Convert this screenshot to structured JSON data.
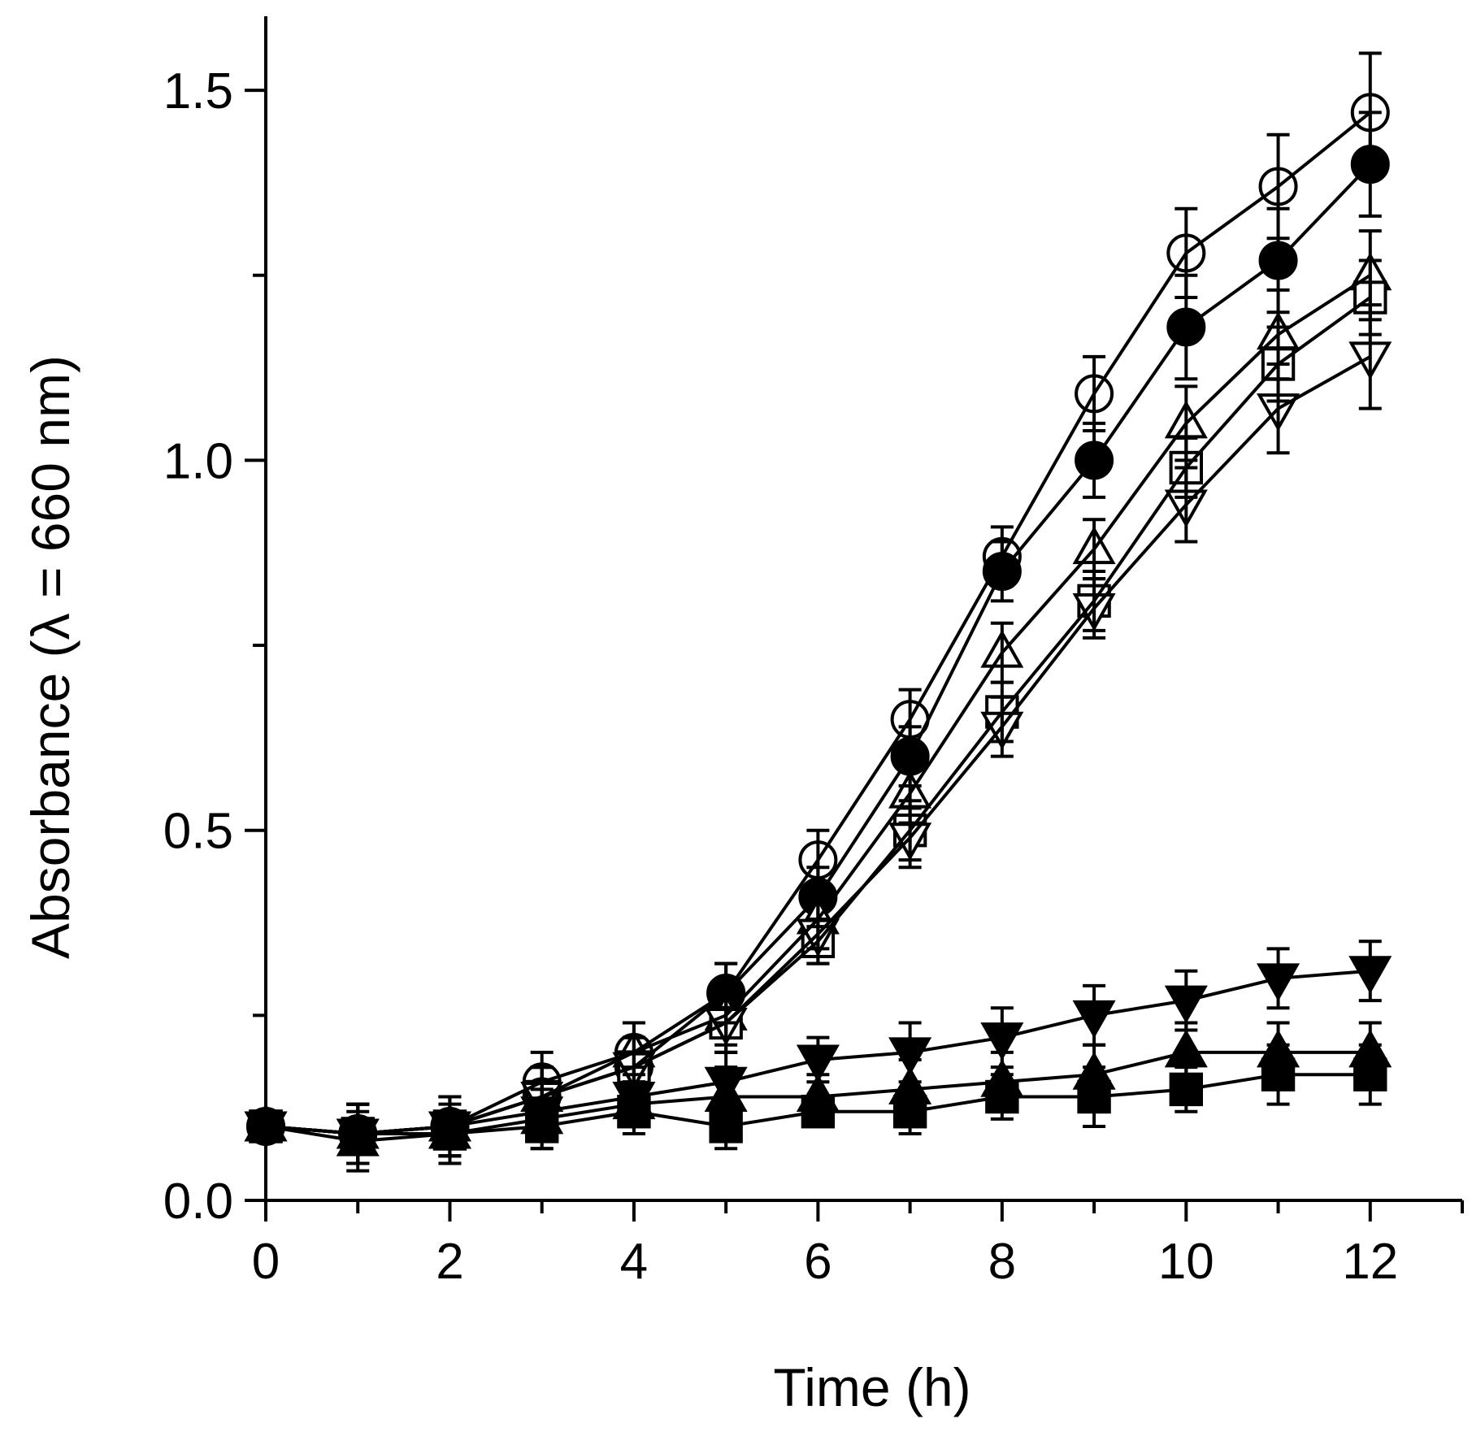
{
  "chart_data": {
    "type": "line",
    "title": "",
    "xlabel": "Time (h)",
    "ylabel": "Absorbance (λ = 660 nm)",
    "xlim": [
      0,
      13
    ],
    "ylim": [
      0,
      1.6
    ],
    "xticks": [
      0,
      2,
      4,
      6,
      8,
      10,
      12
    ],
    "xtick_labels": [
      "0",
      "2",
      "4",
      "6",
      "8",
      "10",
      "12"
    ],
    "yticks": [
      0,
      0.5,
      1.0,
      1.5
    ],
    "ytick_labels": [
      "0.0",
      "0.5",
      "1.0",
      "1.5"
    ],
    "x": [
      0,
      1,
      2,
      3,
      4,
      5,
      6,
      7,
      8,
      9,
      10,
      11,
      12
    ],
    "series": [
      {
        "name": "open circle",
        "marker": "circle",
        "filled": false,
        "values": [
          0.1,
          0.09,
          0.1,
          0.16,
          0.2,
          0.28,
          0.46,
          0.65,
          0.87,
          1.09,
          1.28,
          1.37,
          1.47
        ],
        "errors": [
          0.01,
          0.04,
          0.04,
          0.04,
          0.04,
          0.04,
          0.04,
          0.04,
          0.04,
          0.05,
          0.06,
          0.07,
          0.08
        ]
      },
      {
        "name": "filled circle",
        "marker": "circle",
        "filled": true,
        "values": [
          0.1,
          0.09,
          0.1,
          0.14,
          0.18,
          0.28,
          0.41,
          0.6,
          0.85,
          1.0,
          1.18,
          1.27,
          1.4
        ],
        "errors": [
          0.01,
          0.04,
          0.04,
          0.04,
          0.04,
          0.04,
          0.04,
          0.04,
          0.04,
          0.05,
          0.07,
          0.07,
          0.07
        ]
      },
      {
        "name": "open triangle up",
        "marker": "triangle-up",
        "filled": false,
        "values": [
          0.1,
          0.09,
          0.1,
          0.14,
          0.2,
          0.25,
          0.38,
          0.55,
          0.74,
          0.88,
          1.05,
          1.17,
          1.25
        ],
        "errors": [
          0.01,
          0.04,
          0.04,
          0.04,
          0.04,
          0.04,
          0.04,
          0.04,
          0.04,
          0.04,
          0.05,
          0.06,
          0.06
        ]
      },
      {
        "name": "open square",
        "marker": "square",
        "filled": false,
        "values": [
          0.1,
          0.09,
          0.1,
          0.14,
          0.18,
          0.24,
          0.35,
          0.5,
          0.66,
          0.81,
          0.99,
          1.13,
          1.22
        ],
        "errors": [
          0.01,
          0.04,
          0.04,
          0.04,
          0.04,
          0.04,
          0.03,
          0.04,
          0.04,
          0.04,
          0.04,
          0.05,
          0.05
        ]
      },
      {
        "name": "open triangle down",
        "marker": "triangle-down",
        "filled": false,
        "values": [
          0.1,
          0.09,
          0.1,
          0.14,
          0.18,
          0.24,
          0.36,
          0.49,
          0.64,
          0.8,
          0.94,
          1.07,
          1.14
        ],
        "errors": [
          0.01,
          0.04,
          0.04,
          0.04,
          0.04,
          0.04,
          0.04,
          0.04,
          0.04,
          0.04,
          0.05,
          0.06,
          0.07
        ]
      },
      {
        "name": "filled triangle down",
        "marker": "triangle-down",
        "filled": true,
        "values": [
          0.1,
          0.09,
          0.1,
          0.12,
          0.14,
          0.16,
          0.19,
          0.2,
          0.22,
          0.25,
          0.27,
          0.3,
          0.31
        ],
        "errors": [
          0.01,
          0.04,
          0.04,
          0.04,
          0.04,
          0.04,
          0.03,
          0.04,
          0.04,
          0.04,
          0.04,
          0.04,
          0.04
        ]
      },
      {
        "name": "filled triangle up",
        "marker": "triangle-up",
        "filled": true,
        "values": [
          0.1,
          0.08,
          0.09,
          0.11,
          0.13,
          0.14,
          0.14,
          0.15,
          0.16,
          0.17,
          0.2,
          0.2,
          0.2
        ],
        "errors": [
          0.01,
          0.04,
          0.04,
          0.04,
          0.04,
          0.04,
          0.03,
          0.04,
          0.04,
          0.04,
          0.04,
          0.04,
          0.04
        ]
      },
      {
        "name": "filled square",
        "marker": "square",
        "filled": true,
        "values": [
          0.1,
          0.09,
          0.09,
          0.1,
          0.12,
          0.1,
          0.12,
          0.12,
          0.14,
          0.14,
          0.15,
          0.17,
          0.17
        ],
        "errors": [
          0.01,
          0.04,
          0.03,
          0.03,
          0.03,
          0.03,
          0.02,
          0.03,
          0.03,
          0.04,
          0.03,
          0.04,
          0.04
        ]
      }
    ]
  }
}
